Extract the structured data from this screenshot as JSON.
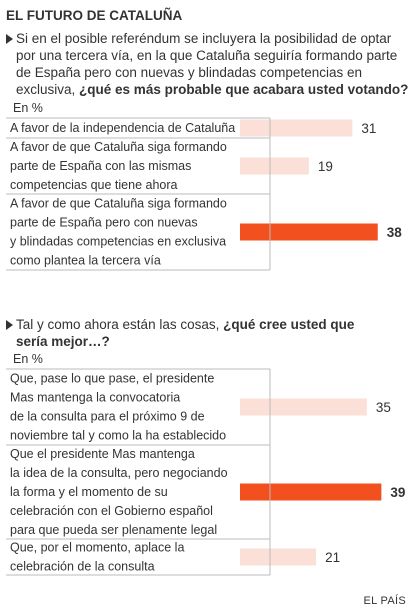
{
  "title": "EL FUTURO DE CATALUÑA",
  "source": "EL PAÍS",
  "colors": {
    "bar": "#fbe0d8",
    "bar_highlight": "#f2501e",
    "rule": "#bbbbbb",
    "text": "#333333"
  },
  "chart_data": [
    {
      "type": "bar",
      "orientation": "horizontal",
      "question": "Si en el posible referéndum se incluyera la posibilidad de optar por una tercera vía, en la que Cataluña seguiría formando parte de España pero con nuevas y blindadas competencias en exclusiva,",
      "question_bold": "¿qué es más probable que acabara usted votando?",
      "unit": "En %",
      "categories": [
        "A favor de la independencia de Cataluña",
        "A favor de que Cataluña siga formando parte de España con las mismas competencias que tiene ahora",
        "A favor de que Cataluña siga formando parte de España pero con nuevas y blindadas competencias en exclusiva como plantea la tercera vía"
      ],
      "values": [
        31,
        19,
        38
      ],
      "highlight": [
        false,
        false,
        true
      ],
      "xlim": [
        0,
        40
      ]
    },
    {
      "type": "bar",
      "orientation": "horizontal",
      "question": "Tal y como ahora están las cosas,",
      "question_bold": "¿qué cree usted que sería mejor…?",
      "unit": "En %",
      "categories": [
        "Que, pase lo que pase, el presidente Mas mantenga la convocatoria de la consulta para el próximo 9 de noviembre tal y como la ha establecido",
        "Que el presidente Mas mantenga la idea de la consulta, pero negociando la forma y el momento de su celebración con el Gobierno español para que pueda ser plenamente legal",
        "Que, por el momento, aplace la celebración de la consulta"
      ],
      "values": [
        35,
        39,
        21
      ],
      "highlight": [
        false,
        true,
        false
      ],
      "xlim": [
        0,
        40
      ]
    }
  ]
}
